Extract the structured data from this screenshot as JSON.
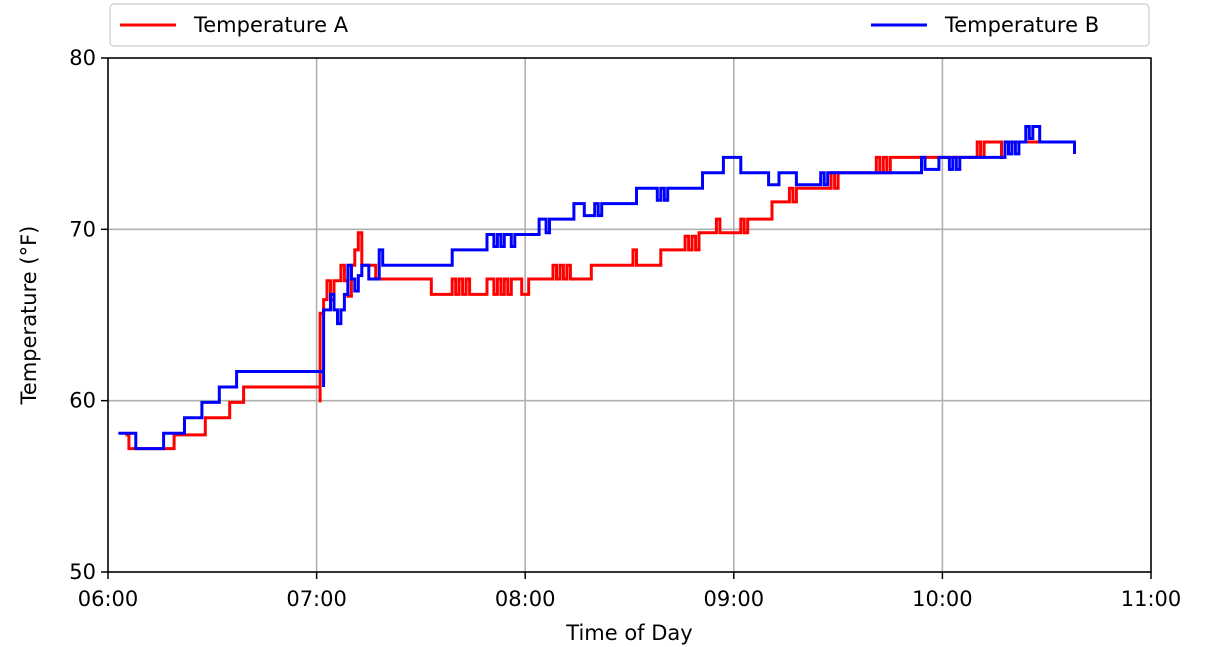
{
  "chart_data": {
    "type": "line",
    "xlabel": "Time of Day",
    "ylabel": "Temperature (°F)",
    "xlim": [
      "06:00",
      "11:00"
    ],
    "ylim": [
      50,
      80
    ],
    "x_ticks": [
      "06:00",
      "07:00",
      "08:00",
      "09:00",
      "10:00",
      "11:00"
    ],
    "y_ticks": [
      "50",
      "60",
      "70",
      "80"
    ],
    "grid": true,
    "legend": "top",
    "series": [
      {
        "name": "Temperature A",
        "color": "#ff0000",
        "points": [
          [
            "06:05",
            58.0
          ],
          [
            "06:06",
            57.2
          ],
          [
            "06:18",
            57.2
          ],
          [
            "06:19",
            58.0
          ],
          [
            "06:27",
            58.0
          ],
          [
            "06:28",
            59.0
          ],
          [
            "06:34",
            59.0
          ],
          [
            "06:35",
            59.9
          ],
          [
            "06:38",
            59.9
          ],
          [
            "06:39",
            60.8
          ],
          [
            "07:01",
            60.8
          ],
          [
            "07:01",
            59.9
          ],
          [
            "07:01",
            65.1
          ],
          [
            "07:02",
            65.9
          ],
          [
            "07:03",
            67.0
          ],
          [
            "07:04",
            65.9
          ],
          [
            "07:05",
            67.0
          ],
          [
            "07:06",
            67.0
          ],
          [
            "07:07",
            67.9
          ],
          [
            "07:08",
            67.0
          ],
          [
            "07:09",
            66.1
          ],
          [
            "07:10",
            67.9
          ],
          [
            "07:11",
            68.8
          ],
          [
            "07:12",
            69.8
          ],
          [
            "07:13",
            67.9
          ],
          [
            "07:16",
            67.9
          ],
          [
            "07:17",
            67.1
          ],
          [
            "07:32",
            67.1
          ],
          [
            "07:33",
            66.2
          ],
          [
            "07:38",
            66.2
          ],
          [
            "07:39",
            67.1
          ],
          [
            "07:40",
            66.2
          ],
          [
            "07:41",
            67.1
          ],
          [
            "07:42",
            66.2
          ],
          [
            "07:43",
            67.1
          ],
          [
            "07:44",
            66.2
          ],
          [
            "07:48",
            66.2
          ],
          [
            "07:49",
            67.1
          ],
          [
            "07:51",
            66.2
          ],
          [
            "07:52",
            67.1
          ],
          [
            "07:53",
            66.2
          ],
          [
            "07:54",
            67.1
          ],
          [
            "07:55",
            66.2
          ],
          [
            "07:56",
            67.1
          ],
          [
            "07:59",
            66.2
          ],
          [
            "08:01",
            67.1
          ],
          [
            "08:07",
            67.1
          ],
          [
            "08:08",
            67.9
          ],
          [
            "08:09",
            67.1
          ],
          [
            "08:10",
            67.9
          ],
          [
            "08:11",
            67.1
          ],
          [
            "08:12",
            67.9
          ],
          [
            "08:13",
            67.1
          ],
          [
            "08:18",
            67.1
          ],
          [
            "08:19",
            67.9
          ],
          [
            "08:30",
            67.9
          ],
          [
            "08:31",
            68.8
          ],
          [
            "08:32",
            67.9
          ],
          [
            "08:38",
            67.9
          ],
          [
            "08:39",
            68.8
          ],
          [
            "08:45",
            68.8
          ],
          [
            "08:46",
            69.6
          ],
          [
            "08:47",
            68.8
          ],
          [
            "08:48",
            69.6
          ],
          [
            "08:49",
            68.8
          ],
          [
            "08:50",
            69.8
          ],
          [
            "08:54",
            69.8
          ],
          [
            "08:55",
            70.6
          ],
          [
            "08:56",
            69.8
          ],
          [
            "09:01",
            69.8
          ],
          [
            "09:02",
            70.6
          ],
          [
            "09:03",
            69.8
          ],
          [
            "09:04",
            70.6
          ],
          [
            "09:10",
            70.6
          ],
          [
            "09:11",
            71.6
          ],
          [
            "09:15",
            71.6
          ],
          [
            "09:16",
            72.4
          ],
          [
            "09:17",
            71.6
          ],
          [
            "09:18",
            72.4
          ],
          [
            "09:27",
            72.4
          ],
          [
            "09:28",
            73.3
          ],
          [
            "09:29",
            72.4
          ],
          [
            "09:30",
            73.3
          ],
          [
            "09:40",
            73.3
          ],
          [
            "09:41",
            74.2
          ],
          [
            "09:42",
            73.3
          ],
          [
            "09:43",
            74.2
          ],
          [
            "09:44",
            73.3
          ],
          [
            "09:45",
            74.2
          ],
          [
            "10:09",
            74.2
          ],
          [
            "10:10",
            75.1
          ],
          [
            "10:11",
            74.2
          ],
          [
            "10:12",
            75.1
          ],
          [
            "10:16",
            75.1
          ],
          [
            "10:17",
            74.2
          ],
          [
            "10:18",
            75.1
          ],
          [
            "10:37",
            75.1
          ],
          [
            "10:38",
            74.4
          ]
        ]
      },
      {
        "name": "Temperature B",
        "color": "#0000ff",
        "points": [
          [
            "06:03",
            58.1
          ],
          [
            "06:07",
            58.1
          ],
          [
            "06:08",
            57.2
          ],
          [
            "06:15",
            57.2
          ],
          [
            "06:16",
            58.1
          ],
          [
            "06:21",
            58.1
          ],
          [
            "06:22",
            59.0
          ],
          [
            "06:26",
            59.0
          ],
          [
            "06:27",
            59.9
          ],
          [
            "06:31",
            59.9
          ],
          [
            "06:32",
            60.8
          ],
          [
            "06:36",
            60.8
          ],
          [
            "06:37",
            61.7
          ],
          [
            "07:02",
            61.7
          ],
          [
            "07:02",
            60.8
          ],
          [
            "07:02",
            65.3
          ],
          [
            "07:04",
            66.2
          ],
          [
            "07:05",
            65.3
          ],
          [
            "07:06",
            64.5
          ],
          [
            "07:07",
            65.3
          ],
          [
            "07:08",
            66.2
          ],
          [
            "07:09",
            67.9
          ],
          [
            "07:10",
            67.1
          ],
          [
            "07:11",
            66.4
          ],
          [
            "07:12",
            67.3
          ],
          [
            "07:13",
            67.9
          ],
          [
            "07:14",
            67.9
          ],
          [
            "07:15",
            67.1
          ],
          [
            "07:17",
            67.1
          ],
          [
            "07:18",
            68.8
          ],
          [
            "07:19",
            67.9
          ],
          [
            "07:38",
            67.9
          ],
          [
            "07:39",
            68.8
          ],
          [
            "07:48",
            68.8
          ],
          [
            "07:49",
            69.7
          ],
          [
            "07:51",
            69.0
          ],
          [
            "07:52",
            69.7
          ],
          [
            "07:53",
            69.0
          ],
          [
            "07:54",
            69.7
          ],
          [
            "07:56",
            69.0
          ],
          [
            "07:57",
            69.7
          ],
          [
            "08:03",
            69.7
          ],
          [
            "08:04",
            70.6
          ],
          [
            "08:06",
            69.8
          ],
          [
            "08:07",
            70.6
          ],
          [
            "08:13",
            70.6
          ],
          [
            "08:14",
            71.5
          ],
          [
            "08:16",
            71.5
          ],
          [
            "08:17",
            70.8
          ],
          [
            "08:19",
            70.8
          ],
          [
            "08:20",
            71.5
          ],
          [
            "08:21",
            70.8
          ],
          [
            "08:22",
            71.5
          ],
          [
            "08:31",
            71.5
          ],
          [
            "08:32",
            72.4
          ],
          [
            "08:37",
            72.4
          ],
          [
            "08:38",
            71.7
          ],
          [
            "08:39",
            72.4
          ],
          [
            "08:40",
            71.7
          ],
          [
            "08:41",
            72.4
          ],
          [
            "08:50",
            72.4
          ],
          [
            "08:51",
            73.3
          ],
          [
            "08:56",
            73.3
          ],
          [
            "08:57",
            74.2
          ],
          [
            "09:01",
            74.2
          ],
          [
            "09:02",
            73.3
          ],
          [
            "09:09",
            73.3
          ],
          [
            "09:10",
            72.6
          ],
          [
            "09:12",
            72.6
          ],
          [
            "09:13",
            73.3
          ],
          [
            "09:17",
            73.3
          ],
          [
            "09:18",
            72.6
          ],
          [
            "09:24",
            72.6
          ],
          [
            "09:25",
            73.3
          ],
          [
            "09:26",
            72.6
          ],
          [
            "09:27",
            73.3
          ],
          [
            "09:53",
            73.3
          ],
          [
            "09:54",
            74.2
          ],
          [
            "09:55",
            73.5
          ],
          [
            "09:58",
            73.5
          ],
          [
            "09:59",
            74.2
          ],
          [
            "10:01",
            74.2
          ],
          [
            "10:02",
            73.5
          ],
          [
            "10:03",
            74.2
          ],
          [
            "10:04",
            73.5
          ],
          [
            "10:05",
            74.2
          ],
          [
            "10:17",
            74.2
          ],
          [
            "10:18",
            75.1
          ],
          [
            "10:19",
            74.4
          ],
          [
            "10:20",
            75.1
          ],
          [
            "10:21",
            74.4
          ],
          [
            "10:22",
            75.1
          ],
          [
            "10:23",
            75.1
          ],
          [
            "10:24",
            76.0
          ],
          [
            "10:25",
            75.3
          ],
          [
            "10:26",
            76.0
          ],
          [
            "10:27",
            76.0
          ],
          [
            "10:28",
            75.1
          ],
          [
            "10:37",
            75.1
          ],
          [
            "10:38",
            74.4
          ]
        ]
      }
    ]
  }
}
